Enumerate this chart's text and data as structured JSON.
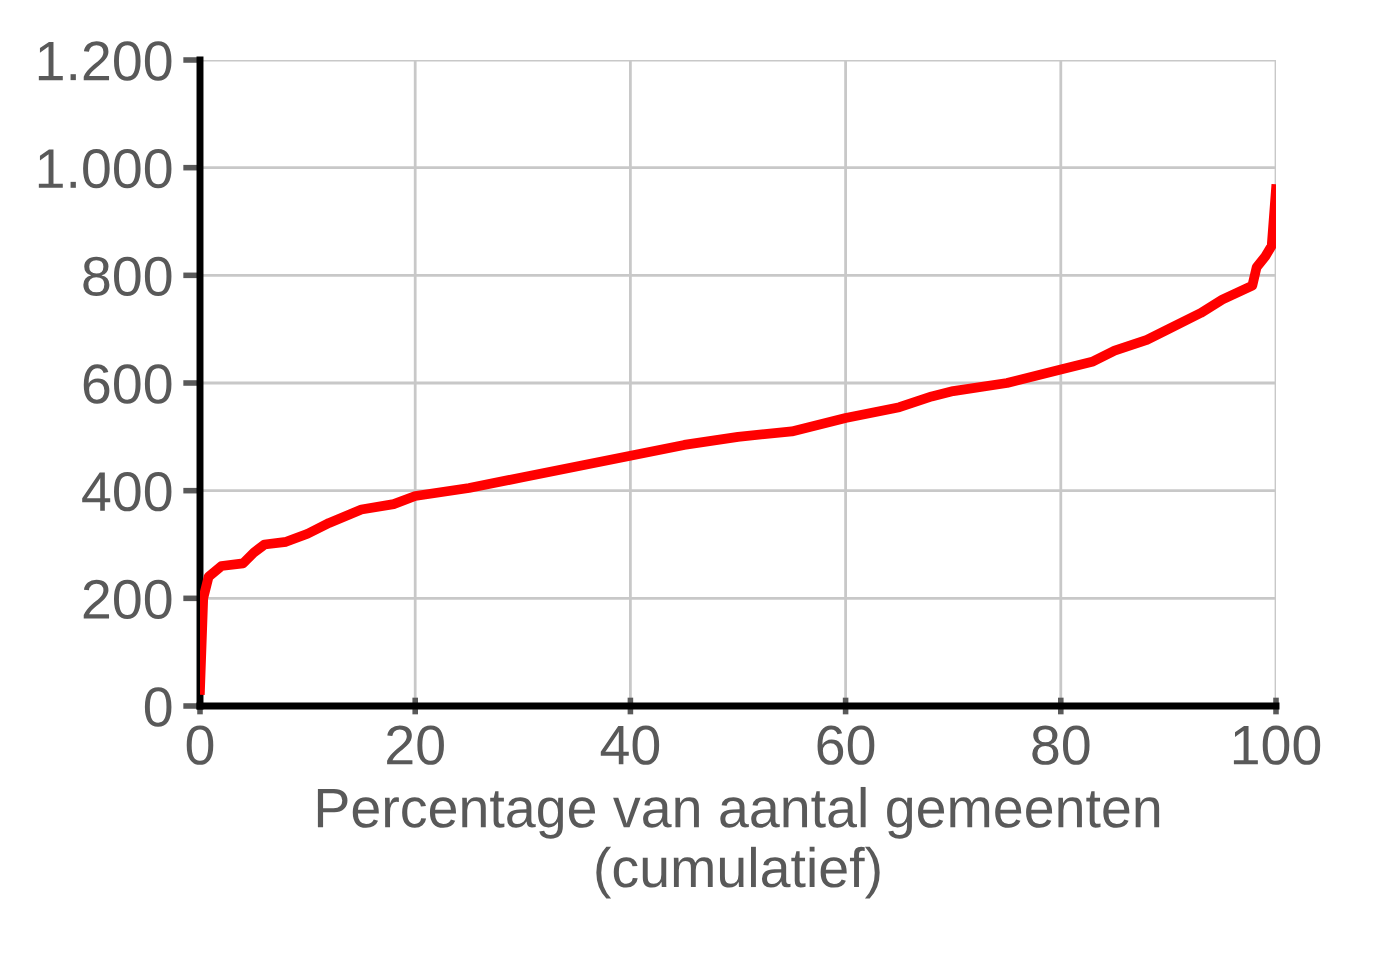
{
  "chart_data": {
    "type": "line",
    "xlabel": "Percentage van aantal gemeenten\n(cumulatief)",
    "series": [
      {
        "color": "#ff0000",
        "x": [
          0,
          0.3,
          0.8,
          2,
          4,
          5,
          6,
          8,
          10,
          12,
          15,
          18,
          20,
          25,
          30,
          35,
          40,
          45,
          50,
          55,
          60,
          65,
          68,
          70,
          75,
          80,
          83,
          85,
          88,
          90,
          93,
          95,
          97.8,
          98.2,
          99,
          99.6,
          100
        ],
        "values": [
          30,
          200,
          240,
          260,
          265,
          285,
          300,
          305,
          320,
          340,
          365,
          375,
          390,
          405,
          425,
          445,
          465,
          485,
          500,
          510,
          535,
          555,
          575,
          585,
          600,
          625,
          640,
          660,
          680,
          700,
          730,
          755,
          781,
          815,
          835,
          855,
          960
        ]
      }
    ],
    "xlim": [
      0,
      100
    ],
    "xticks": [
      0,
      20,
      40,
      60,
      80,
      100
    ],
    "ylim": [
      0,
      1200
    ],
    "yticks": [
      0,
      200,
      400,
      600,
      800,
      {
        "value": 1000,
        "label": "1.000"
      },
      {
        "value": 1200,
        "label": "1.200"
      }
    ],
    "grid": true,
    "line_style": "solid",
    "marker": "none"
  }
}
